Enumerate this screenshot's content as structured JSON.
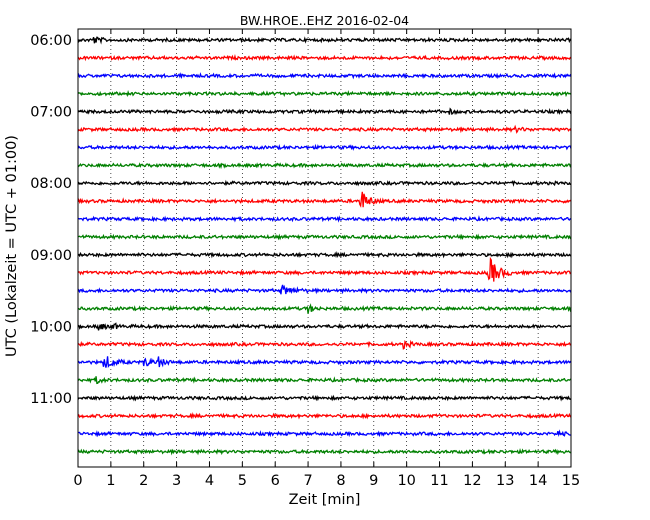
{
  "chart_data": {
    "type": "line",
    "title": "BW.HROE..EHZ 2016-02-04",
    "xlabel": "Zeit  [min]",
    "ylabel": "UTC (Lokalzeit = UTC + 01:00)",
    "xlim": [
      0,
      15
    ],
    "x_ticks": [
      "0",
      "1",
      "2",
      "3",
      "4",
      "5",
      "6",
      "7",
      "8",
      "9",
      "10",
      "11",
      "12",
      "13",
      "14",
      "15"
    ],
    "y_tick_labels": [
      "06:00",
      "07:00",
      "08:00",
      "09:00",
      "10:00",
      "11:00"
    ],
    "grid": "vertical dotted lines at each minute",
    "row_interval_minutes": 15,
    "row_colors": [
      "#000000",
      "#ff0000",
      "#0000ff",
      "#008000"
    ],
    "rows": [
      {
        "start": "06:00",
        "color": "black"
      },
      {
        "start": "06:15",
        "color": "red"
      },
      {
        "start": "06:30",
        "color": "blue"
      },
      {
        "start": "06:45",
        "color": "green"
      },
      {
        "start": "07:00",
        "color": "black"
      },
      {
        "start": "07:15",
        "color": "red"
      },
      {
        "start": "07:30",
        "color": "blue"
      },
      {
        "start": "07:45",
        "color": "green"
      },
      {
        "start": "08:00",
        "color": "black"
      },
      {
        "start": "08:15",
        "color": "red"
      },
      {
        "start": "08:30",
        "color": "blue"
      },
      {
        "start": "08:45",
        "color": "green"
      },
      {
        "start": "09:00",
        "color": "black"
      },
      {
        "start": "09:15",
        "color": "red"
      },
      {
        "start": "09:30",
        "color": "blue"
      },
      {
        "start": "09:45",
        "color": "green"
      },
      {
        "start": "10:00",
        "color": "black"
      },
      {
        "start": "10:15",
        "color": "red"
      },
      {
        "start": "10:30",
        "color": "blue"
      },
      {
        "start": "10:45",
        "color": "green"
      },
      {
        "start": "11:00",
        "color": "black"
      },
      {
        "start": "11:15",
        "color": "red"
      },
      {
        "start": "11:30",
        "color": "blue"
      },
      {
        "start": "11:45",
        "color": "green"
      }
    ],
    "events": [
      {
        "row": 0,
        "x": 0.45,
        "amplitude": 0.25,
        "duration": 0.5
      },
      {
        "row": 4,
        "x": 11.3,
        "amplitude": 0.12,
        "duration": 0.4
      },
      {
        "row": 5,
        "x": 13.3,
        "amplitude": 0.12,
        "duration": 0.6
      },
      {
        "row": 9,
        "x": 8.6,
        "amplitude": 0.7,
        "duration": 0.6
      },
      {
        "row": 13,
        "x": 12.5,
        "amplitude": 1.0,
        "duration": 0.7
      },
      {
        "row": 14,
        "x": 6.2,
        "amplitude": 0.3,
        "duration": 0.8
      },
      {
        "row": 15,
        "x": 7.0,
        "amplitude": 0.25,
        "duration": 0.4
      },
      {
        "row": 16,
        "x": 0.6,
        "amplitude": 0.25,
        "duration": 0.5
      },
      {
        "row": 16,
        "x": 1.1,
        "amplitude": 0.15,
        "duration": 0.3
      },
      {
        "row": 17,
        "x": 9.9,
        "amplitude": 0.2,
        "duration": 0.5
      },
      {
        "row": 18,
        "x": 0.8,
        "amplitude": 0.45,
        "duration": 0.7
      },
      {
        "row": 18,
        "x": 2.0,
        "amplitude": 0.3,
        "duration": 0.5
      },
      {
        "row": 18,
        "x": 2.4,
        "amplitude": 0.35,
        "duration": 0.5
      },
      {
        "row": 19,
        "x": 0.55,
        "amplitude": 0.2,
        "duration": 0.4
      },
      {
        "row": 22,
        "x": 14.6,
        "amplitude": 0.15,
        "duration": 0.3
      }
    ]
  }
}
